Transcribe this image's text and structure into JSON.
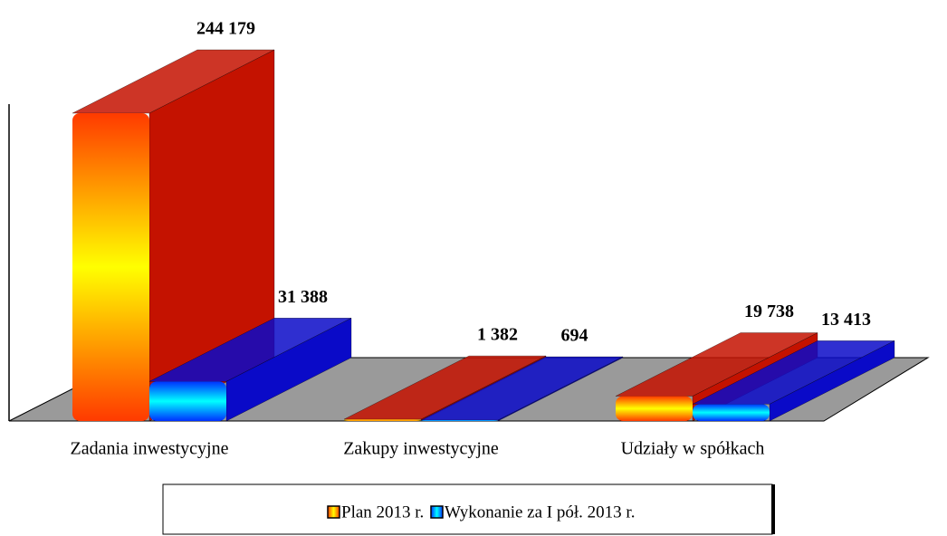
{
  "chart_data": {
    "type": "bar3d",
    "categories": [
      "Zadania inwestycyjne",
      "Zakupy inwestycyjne",
      "Udziały w spółkach"
    ],
    "series": [
      {
        "name": "Plan 2013 r.",
        "color": "#c41200",
        "values": [
          244179,
          1382,
          19738
        ],
        "value_labels": [
          "244 179",
          "1 382",
          "19 738"
        ]
      },
      {
        "name": "Wykonanie za I pół. 2013 r.",
        "color": "#0a0ac8",
        "values": [
          31388,
          694,
          13413
        ],
        "value_labels": [
          "31 388",
          "694",
          "13 413"
        ]
      }
    ],
    "legend": "bottom"
  }
}
